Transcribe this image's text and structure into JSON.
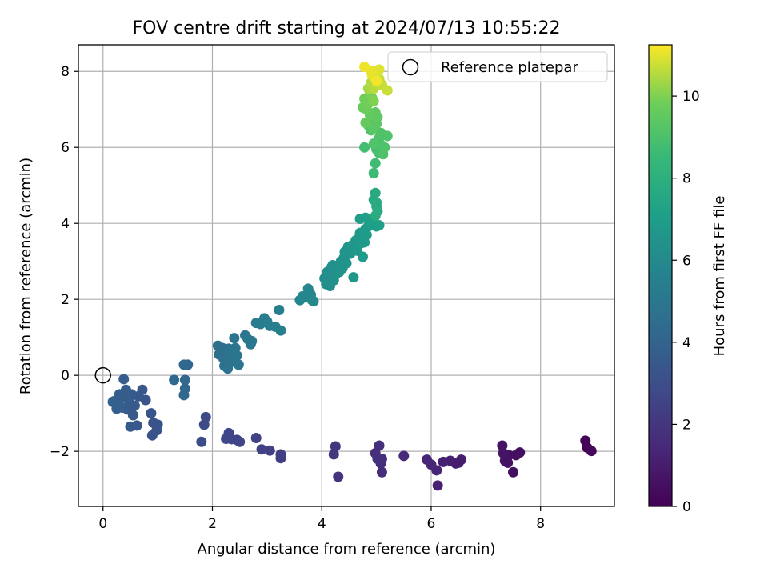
{
  "chart_data": {
    "type": "scatter",
    "title": "FOV centre drift starting at 2024/07/13 10:55:22",
    "xlabel": "Angular distance from reference (arcmin)",
    "ylabel": "Rotation from reference (arcmin)",
    "xlim": [
      -0.45,
      9.35
    ],
    "ylim": [
      -3.45,
      8.7
    ],
    "xticks": [
      0,
      2,
      4,
      6,
      8
    ],
    "yticks": [
      -2,
      0,
      2,
      4,
      6,
      8
    ],
    "xtick_labels": [
      "0",
      "2",
      "4",
      "6",
      "8"
    ],
    "ytick_labels": [
      "−2",
      "0",
      "2",
      "4",
      "6",
      "8"
    ],
    "grid": true,
    "legend": {
      "position": "top-right",
      "label": "Reference platepar"
    },
    "reference_point": {
      "x": 0,
      "y": 0
    },
    "colorbar": {
      "label": "Hours from first FF file",
      "colormap": "viridis",
      "range": [
        0,
        11.25
      ],
      "ticks": [
        0,
        2,
        4,
        6,
        8,
        10
      ],
      "tick_labels": [
        "0",
        "2",
        "4",
        "6",
        "8",
        "10"
      ]
    },
    "points": [
      {
        "x": 8.82,
        "y": -1.72,
        "t": 0.1
      },
      {
        "x": 8.85,
        "y": -1.9,
        "t": 0.15
      },
      {
        "x": 8.93,
        "y": -1.99,
        "t": 0.2
      },
      {
        "x": 7.62,
        "y": -2.03,
        "t": 0.45
      },
      {
        "x": 7.5,
        "y": -2.55,
        "t": 0.5
      },
      {
        "x": 7.42,
        "y": -2.1,
        "t": 0.55
      },
      {
        "x": 7.35,
        "y": -2.25,
        "t": 0.6
      },
      {
        "x": 7.3,
        "y": -1.85,
        "t": 0.65
      },
      {
        "x": 7.32,
        "y": -2.05,
        "t": 0.7
      },
      {
        "x": 7.55,
        "y": -2.1,
        "t": 0.5
      },
      {
        "x": 7.4,
        "y": -2.3,
        "t": 0.6
      },
      {
        "x": 6.55,
        "y": -2.22,
        "t": 1.0
      },
      {
        "x": 6.45,
        "y": -2.32,
        "t": 1.05
      },
      {
        "x": 6.35,
        "y": -2.25,
        "t": 1.1
      },
      {
        "x": 6.22,
        "y": -2.28,
        "t": 1.15
      },
      {
        "x": 6.12,
        "y": -2.9,
        "t": 1.2
      },
      {
        "x": 6.1,
        "y": -2.5,
        "t": 1.25
      },
      {
        "x": 6.0,
        "y": -2.35,
        "t": 1.3
      },
      {
        "x": 5.92,
        "y": -2.22,
        "t": 1.35
      },
      {
        "x": 6.5,
        "y": -2.3,
        "t": 1.05
      },
      {
        "x": 5.5,
        "y": -2.12,
        "t": 1.5
      },
      {
        "x": 5.1,
        "y": -2.55,
        "t": 1.6
      },
      {
        "x": 5.08,
        "y": -2.32,
        "t": 1.65
      },
      {
        "x": 5.05,
        "y": -1.85,
        "t": 1.7
      },
      {
        "x": 4.98,
        "y": -2.05,
        "t": 1.75
      },
      {
        "x": 5.02,
        "y": -2.2,
        "t": 1.8
      },
      {
        "x": 4.3,
        "y": -2.67,
        "t": 1.9
      },
      {
        "x": 4.25,
        "y": -1.87,
        "t": 1.95
      },
      {
        "x": 4.22,
        "y": -2.08,
        "t": 2.0
      },
      {
        "x": 5.1,
        "y": -2.2,
        "t": 1.7
      },
      {
        "x": 3.25,
        "y": -2.18,
        "t": 2.3
      },
      {
        "x": 3.25,
        "y": -2.08,
        "t": 2.35
      },
      {
        "x": 3.05,
        "y": -1.98,
        "t": 2.4
      },
      {
        "x": 2.9,
        "y": -1.95,
        "t": 2.45
      },
      {
        "x": 2.8,
        "y": -1.65,
        "t": 2.5
      },
      {
        "x": 2.5,
        "y": -1.75,
        "t": 2.6
      },
      {
        "x": 2.45,
        "y": -1.7,
        "t": 2.62
      },
      {
        "x": 2.35,
        "y": -1.68,
        "t": 2.65
      },
      {
        "x": 2.3,
        "y": -1.52,
        "t": 2.7
      },
      {
        "x": 2.25,
        "y": -1.67,
        "t": 2.72
      },
      {
        "x": 1.88,
        "y": -1.1,
        "t": 2.85
      },
      {
        "x": 1.85,
        "y": -1.3,
        "t": 2.9
      },
      {
        "x": 1.8,
        "y": -1.75,
        "t": 2.95
      },
      {
        "x": 1.0,
        "y": -1.3,
        "t": 3.2
      },
      {
        "x": 0.98,
        "y": -1.45,
        "t": 3.22
      },
      {
        "x": 0.92,
        "y": -1.25,
        "t": 3.25
      },
      {
        "x": 0.9,
        "y": -1.58,
        "t": 3.28
      },
      {
        "x": 0.88,
        "y": -1.0,
        "t": 3.3
      },
      {
        "x": 0.78,
        "y": -0.65,
        "t": 3.35
      },
      {
        "x": 0.72,
        "y": -0.38,
        "t": 3.4
      },
      {
        "x": 0.65,
        "y": -0.55,
        "t": 3.42
      },
      {
        "x": 0.62,
        "y": -1.32,
        "t": 3.45
      },
      {
        "x": 0.55,
        "y": -1.05,
        "t": 3.5
      },
      {
        "x": 0.52,
        "y": -0.5,
        "t": 3.55
      },
      {
        "x": 0.5,
        "y": -1.35,
        "t": 3.58
      },
      {
        "x": 0.48,
        "y": -0.68,
        "t": 3.6
      },
      {
        "x": 0.45,
        "y": -0.9,
        "t": 3.62
      },
      {
        "x": 0.42,
        "y": -0.38,
        "t": 3.65
      },
      {
        "x": 0.4,
        "y": -0.55,
        "t": 3.68
      },
      {
        "x": 0.38,
        "y": -0.1,
        "t": 3.7
      },
      {
        "x": 0.35,
        "y": -0.85,
        "t": 3.72
      },
      {
        "x": 0.32,
        "y": -0.6,
        "t": 3.75
      },
      {
        "x": 0.28,
        "y": -0.75,
        "t": 3.78
      },
      {
        "x": 0.25,
        "y": -0.88,
        "t": 3.8
      },
      {
        "x": 0.2,
        "y": -0.68,
        "t": 3.82
      },
      {
        "x": 0.18,
        "y": -0.7,
        "t": 3.85
      },
      {
        "x": 0.58,
        "y": -0.8,
        "t": 3.5
      },
      {
        "x": 0.3,
        "y": -0.5,
        "t": 3.75
      },
      {
        "x": 1.55,
        "y": 0.28,
        "t": 4.1
      },
      {
        "x": 1.5,
        "y": -0.12,
        "t": 4.15
      },
      {
        "x": 1.5,
        "y": -0.35,
        "t": 4.18
      },
      {
        "x": 1.48,
        "y": -0.52,
        "t": 4.2
      },
      {
        "x": 1.48,
        "y": 0.28,
        "t": 4.22
      },
      {
        "x": 1.3,
        "y": -0.12,
        "t": 4.25
      },
      {
        "x": 2.1,
        "y": 0.78,
        "t": 4.6
      },
      {
        "x": 2.12,
        "y": 0.55,
        "t": 4.62
      },
      {
        "x": 2.18,
        "y": 0.72,
        "t": 4.65
      },
      {
        "x": 2.2,
        "y": 0.45,
        "t": 4.68
      },
      {
        "x": 2.22,
        "y": 0.25,
        "t": 4.7
      },
      {
        "x": 2.25,
        "y": 0.62,
        "t": 4.72
      },
      {
        "x": 2.28,
        "y": 0.18,
        "t": 4.75
      },
      {
        "x": 2.3,
        "y": 0.7,
        "t": 4.78
      },
      {
        "x": 2.32,
        "y": 0.5,
        "t": 4.8
      },
      {
        "x": 2.35,
        "y": 0.35,
        "t": 4.82
      },
      {
        "x": 2.38,
        "y": 0.6,
        "t": 4.85
      },
      {
        "x": 2.4,
        "y": 0.98,
        "t": 4.88
      },
      {
        "x": 2.42,
        "y": 0.72,
        "t": 4.9
      },
      {
        "x": 2.45,
        "y": 0.52,
        "t": 4.92
      },
      {
        "x": 2.48,
        "y": 0.28,
        "t": 4.95
      },
      {
        "x": 2.6,
        "y": 1.05,
        "t": 5.0
      },
      {
        "x": 2.65,
        "y": 0.95,
        "t": 5.05
      },
      {
        "x": 2.7,
        "y": 0.82,
        "t": 5.08
      },
      {
        "x": 2.72,
        "y": 0.9,
        "t": 5.1
      },
      {
        "x": 2.8,
        "y": 1.38,
        "t": 5.3
      },
      {
        "x": 2.88,
        "y": 1.35,
        "t": 5.32
      },
      {
        "x": 2.95,
        "y": 1.5,
        "t": 5.35
      },
      {
        "x": 3.0,
        "y": 1.42,
        "t": 5.38
      },
      {
        "x": 3.05,
        "y": 1.3,
        "t": 5.4
      },
      {
        "x": 3.15,
        "y": 1.28,
        "t": 5.42
      },
      {
        "x": 3.22,
        "y": 1.72,
        "t": 5.45
      },
      {
        "x": 3.25,
        "y": 1.18,
        "t": 5.48
      },
      {
        "x": 3.6,
        "y": 1.98,
        "t": 5.8
      },
      {
        "x": 3.65,
        "y": 2.08,
        "t": 5.82
      },
      {
        "x": 3.7,
        "y": 2.05,
        "t": 5.85
      },
      {
        "x": 3.75,
        "y": 2.28,
        "t": 5.88
      },
      {
        "x": 3.8,
        "y": 2.12,
        "t": 5.9
      },
      {
        "x": 3.82,
        "y": 1.98,
        "t": 5.92
      },
      {
        "x": 3.85,
        "y": 1.95,
        "t": 5.95
      },
      {
        "x": 3.78,
        "y": 2.18,
        "t": 5.9
      },
      {
        "x": 4.05,
        "y": 2.55,
        "t": 6.2
      },
      {
        "x": 4.08,
        "y": 2.4,
        "t": 6.22
      },
      {
        "x": 4.1,
        "y": 2.72,
        "t": 6.25
      },
      {
        "x": 4.15,
        "y": 2.35,
        "t": 6.28
      },
      {
        "x": 4.18,
        "y": 2.85,
        "t": 6.3
      },
      {
        "x": 4.2,
        "y": 2.9,
        "t": 6.32
      },
      {
        "x": 4.22,
        "y": 2.5,
        "t": 6.35
      },
      {
        "x": 4.25,
        "y": 2.65,
        "t": 6.38
      },
      {
        "x": 4.28,
        "y": 2.78,
        "t": 6.4
      },
      {
        "x": 4.32,
        "y": 2.72,
        "t": 6.42
      },
      {
        "x": 4.35,
        "y": 3.0,
        "t": 6.45
      },
      {
        "x": 4.38,
        "y": 2.82,
        "t": 6.48
      },
      {
        "x": 4.4,
        "y": 3.08,
        "t": 6.5
      },
      {
        "x": 4.42,
        "y": 3.25,
        "t": 6.52
      },
      {
        "x": 4.45,
        "y": 2.95,
        "t": 6.55
      },
      {
        "x": 4.48,
        "y": 3.38,
        "t": 6.58
      },
      {
        "x": 4.52,
        "y": 3.2,
        "t": 6.6
      },
      {
        "x": 4.55,
        "y": 3.42,
        "t": 6.62
      },
      {
        "x": 4.58,
        "y": 2.58,
        "t": 6.65
      },
      {
        "x": 4.6,
        "y": 3.3,
        "t": 6.68
      },
      {
        "x": 4.62,
        "y": 3.55,
        "t": 6.7
      },
      {
        "x": 4.65,
        "y": 3.28,
        "t": 6.72
      },
      {
        "x": 4.68,
        "y": 3.62,
        "t": 6.75
      },
      {
        "x": 4.7,
        "y": 3.75,
        "t": 6.78
      },
      {
        "x": 4.72,
        "y": 3.48,
        "t": 6.8
      },
      {
        "x": 4.75,
        "y": 3.12,
        "t": 6.82
      },
      {
        "x": 4.78,
        "y": 3.5,
        "t": 6.85
      },
      {
        "x": 4.8,
        "y": 3.85,
        "t": 6.88
      },
      {
        "x": 4.82,
        "y": 3.7,
        "t": 6.9
      },
      {
        "x": 4.85,
        "y": 3.92,
        "t": 6.95
      },
      {
        "x": 4.7,
        "y": 4.12,
        "t": 7.0
      },
      {
        "x": 4.8,
        "y": 4.15,
        "t": 7.02
      },
      {
        "x": 4.9,
        "y": 3.98,
        "t": 7.05
      },
      {
        "x": 4.95,
        "y": 4.08,
        "t": 7.08
      },
      {
        "x": 5.0,
        "y": 3.92,
        "t": 7.1
      },
      {
        "x": 5.05,
        "y": 3.95,
        "t": 7.12
      },
      {
        "x": 4.95,
        "y": 4.62,
        "t": 7.6
      },
      {
        "x": 4.98,
        "y": 4.8,
        "t": 7.65
      },
      {
        "x": 5.0,
        "y": 4.45,
        "t": 7.7
      },
      {
        "x": 5.02,
        "y": 4.32,
        "t": 7.75
      },
      {
        "x": 5.0,
        "y": 4.55,
        "t": 7.72
      },
      {
        "x": 4.98,
        "y": 4.2,
        "t": 7.78
      },
      {
        "x": 4.95,
        "y": 5.32,
        "t": 8.6
      },
      {
        "x": 4.98,
        "y": 5.58,
        "t": 8.7
      },
      {
        "x": 4.78,
        "y": 6.0,
        "t": 8.8
      },
      {
        "x": 5.0,
        "y": 5.95,
        "t": 8.9
      },
      {
        "x": 5.05,
        "y": 5.85,
        "t": 8.95
      },
      {
        "x": 5.1,
        "y": 6.05,
        "t": 9.0
      },
      {
        "x": 5.12,
        "y": 5.82,
        "t": 9.02
      },
      {
        "x": 5.05,
        "y": 6.25,
        "t": 9.05
      },
      {
        "x": 5.15,
        "y": 6.0,
        "t": 9.08
      },
      {
        "x": 5.2,
        "y": 6.3,
        "t": 9.1
      },
      {
        "x": 5.08,
        "y": 6.38,
        "t": 9.12
      },
      {
        "x": 4.95,
        "y": 6.1,
        "t": 9.15
      },
      {
        "x": 4.9,
        "y": 6.45,
        "t": 9.2
      },
      {
        "x": 4.85,
        "y": 6.58,
        "t": 9.25
      },
      {
        "x": 4.92,
        "y": 6.72,
        "t": 9.3
      },
      {
        "x": 4.95,
        "y": 6.5,
        "t": 9.35
      },
      {
        "x": 5.0,
        "y": 6.62,
        "t": 9.4
      },
      {
        "x": 5.02,
        "y": 6.8,
        "t": 9.45
      },
      {
        "x": 4.98,
        "y": 6.92,
        "t": 9.5
      },
      {
        "x": 4.88,
        "y": 6.85,
        "t": 9.55
      },
      {
        "x": 4.8,
        "y": 6.65,
        "t": 9.6
      },
      {
        "x": 4.75,
        "y": 7.05,
        "t": 9.7
      },
      {
        "x": 4.82,
        "y": 7.0,
        "t": 9.75
      },
      {
        "x": 4.78,
        "y": 7.28,
        "t": 9.8
      },
      {
        "x": 4.85,
        "y": 7.15,
        "t": 9.85
      },
      {
        "x": 4.92,
        "y": 7.3,
        "t": 9.9
      },
      {
        "x": 4.88,
        "y": 7.42,
        "t": 9.95
      },
      {
        "x": 4.95,
        "y": 7.22,
        "t": 10.0
      },
      {
        "x": 4.85,
        "y": 7.55,
        "t": 10.4
      },
      {
        "x": 4.9,
        "y": 7.7,
        "t": 10.5
      },
      {
        "x": 4.95,
        "y": 7.55,
        "t": 10.55
      },
      {
        "x": 5.0,
        "y": 7.62,
        "t": 10.6
      },
      {
        "x": 5.05,
        "y": 7.8,
        "t": 10.65
      },
      {
        "x": 5.1,
        "y": 7.65,
        "t": 10.7
      },
      {
        "x": 5.2,
        "y": 7.5,
        "t": 10.75
      },
      {
        "x": 4.95,
        "y": 7.85,
        "t": 10.8
      },
      {
        "x": 5.02,
        "y": 7.95,
        "t": 10.85
      },
      {
        "x": 4.98,
        "y": 8.0,
        "t": 10.9
      },
      {
        "x": 5.05,
        "y": 8.05,
        "t": 10.95
      },
      {
        "x": 4.92,
        "y": 7.9,
        "t": 11.0
      },
      {
        "x": 4.9,
        "y": 8.02,
        "t": 11.05
      },
      {
        "x": 4.78,
        "y": 8.12,
        "t": 11.1
      },
      {
        "x": 5.0,
        "y": 7.75,
        "t": 11.15
      }
    ]
  }
}
